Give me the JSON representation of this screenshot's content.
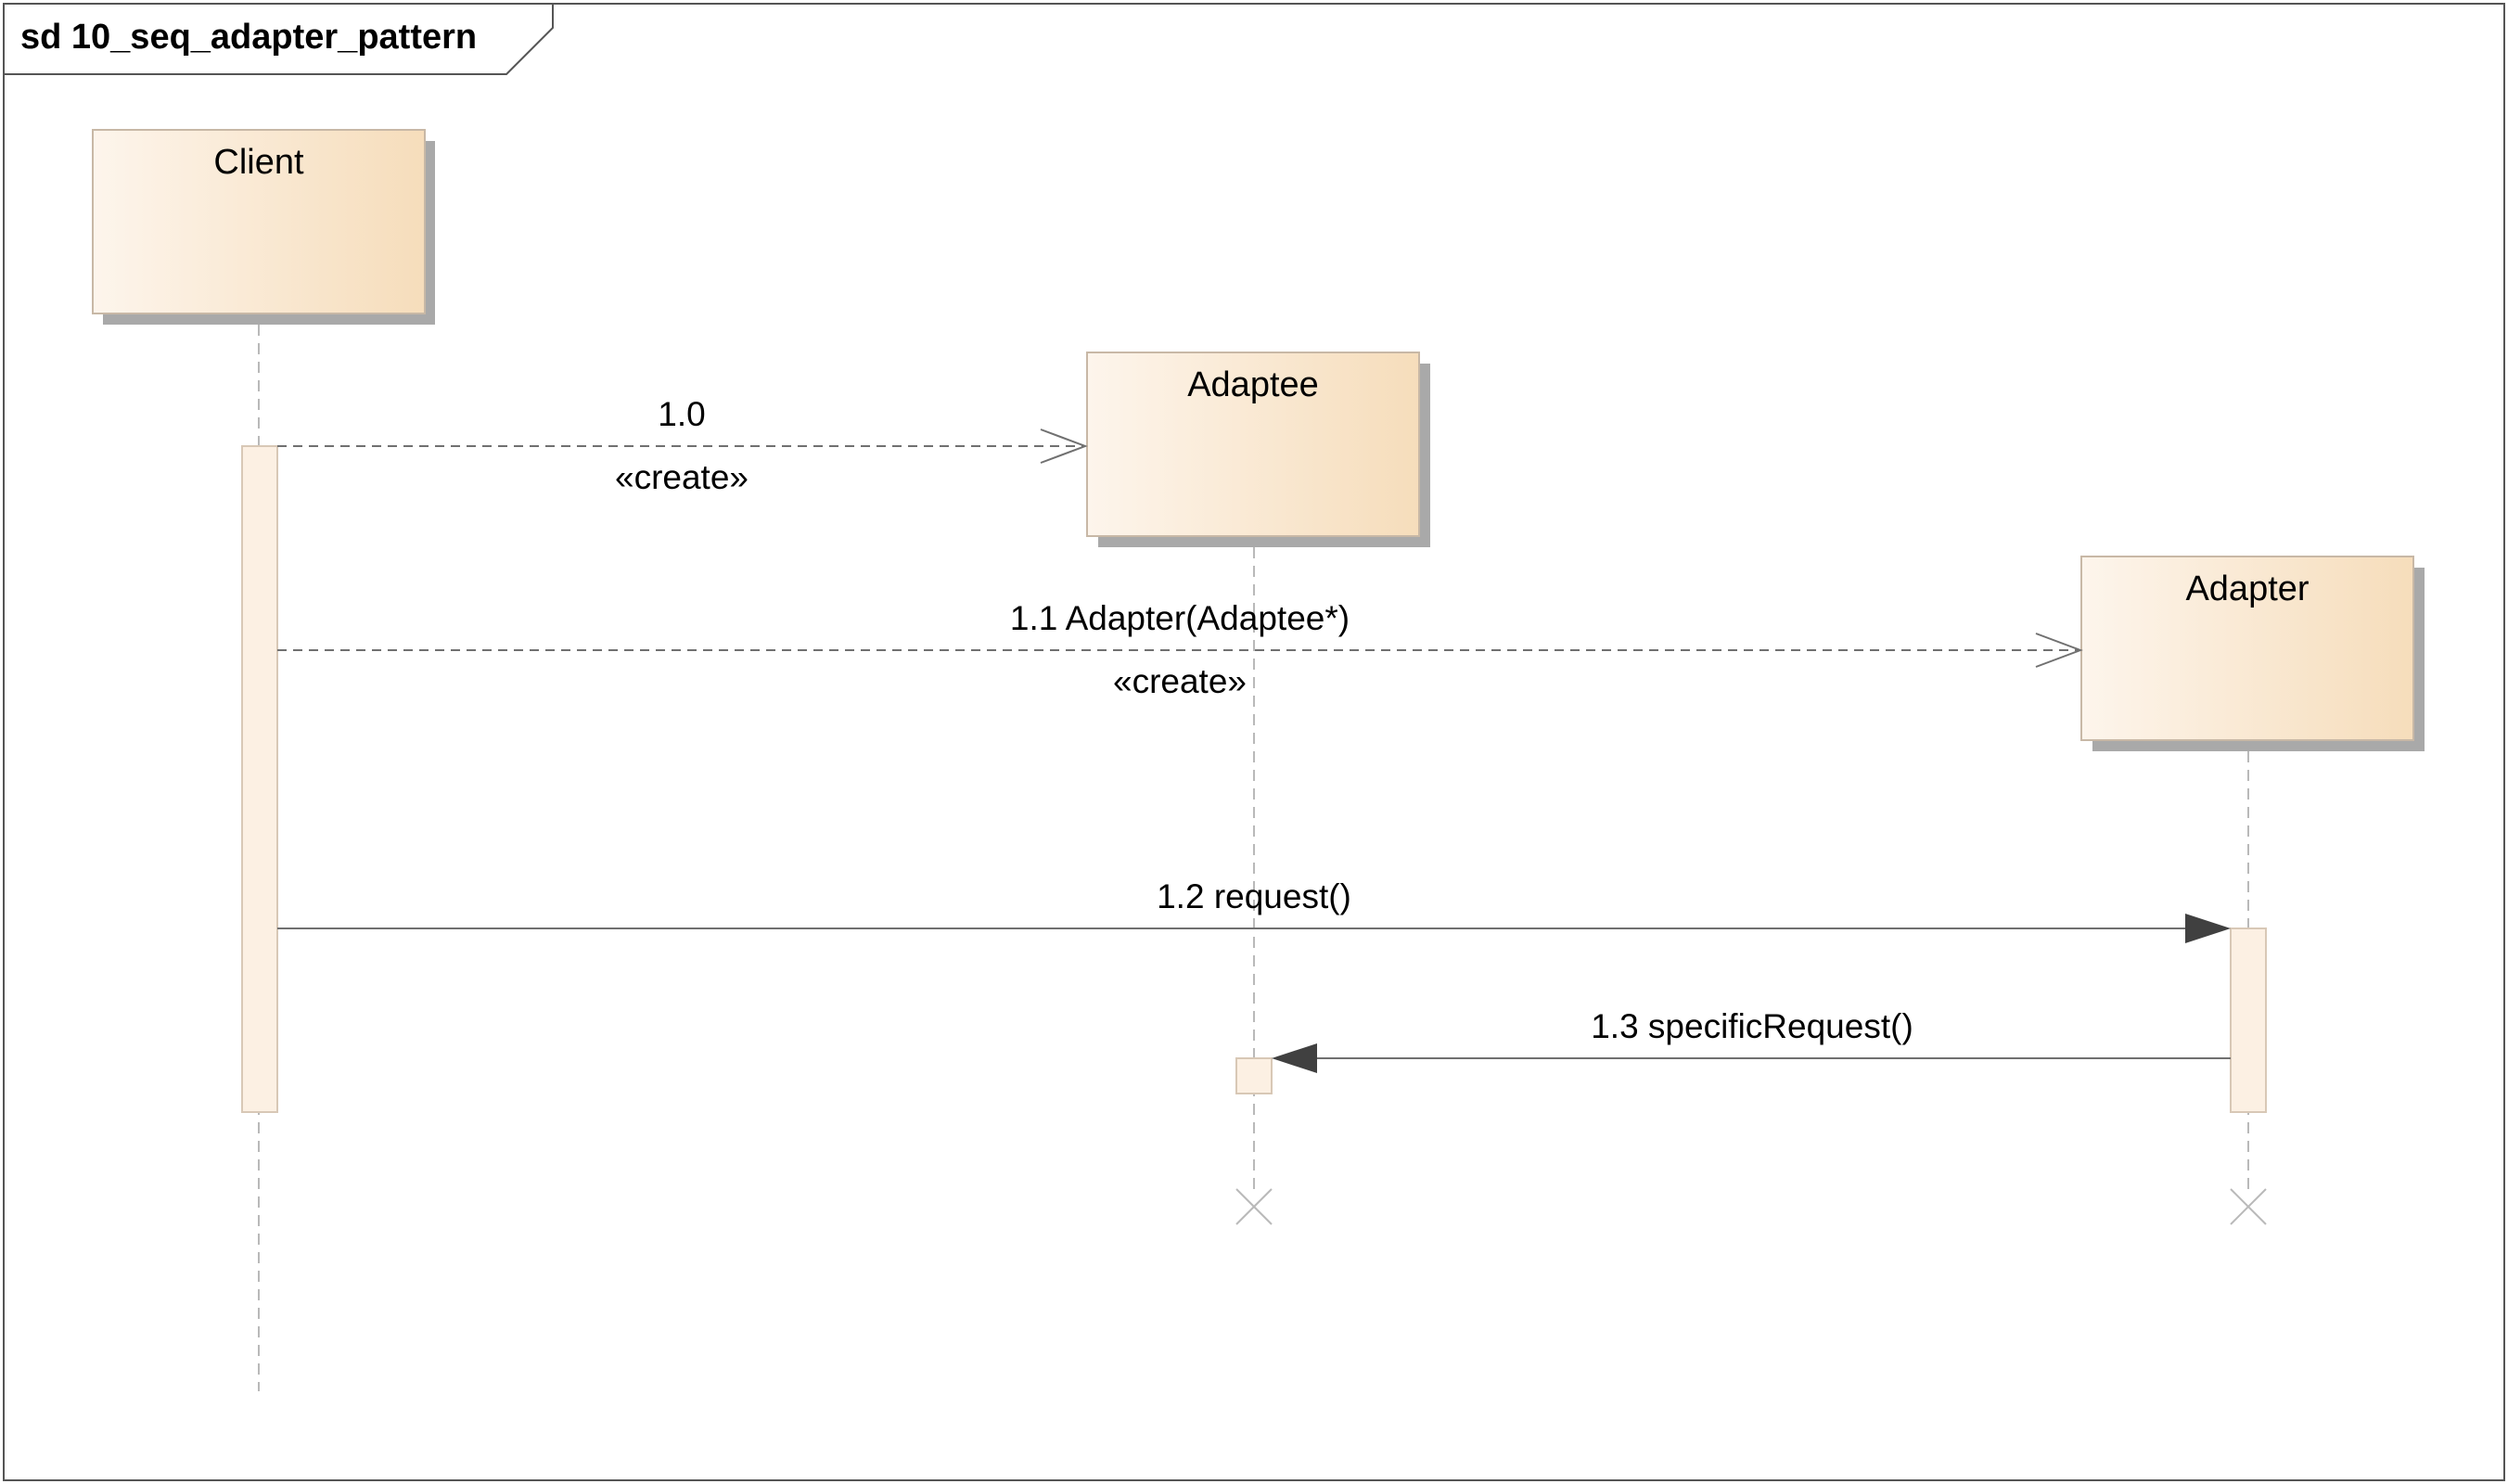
{
  "frame": {
    "title": "sd 10_seq_adapter_pattern"
  },
  "lifelines": [
    {
      "id": "client",
      "name": "Client"
    },
    {
      "id": "adaptee",
      "name": "Adaptee"
    },
    {
      "id": "adapter",
      "name": "Adapter"
    }
  ],
  "messages": [
    {
      "id": "m10",
      "label": "1.0",
      "stereotype": "«create»",
      "from": "client",
      "to": "adaptee",
      "kind": "create"
    },
    {
      "id": "m11",
      "label": "1.1 Adapter(Adaptee*)",
      "stereotype": "«create»",
      "from": "client",
      "to": "adapter",
      "kind": "create"
    },
    {
      "id": "m12",
      "label": "1.2 request()",
      "from": "client",
      "to": "adapter",
      "kind": "sync"
    },
    {
      "id": "m13",
      "label": "1.3 specificRequest()",
      "from": "adapter",
      "to": "adaptee",
      "kind": "sync"
    }
  ],
  "colors": {
    "box_light": "#fdf5ec",
    "box_dark": "#f6ddbb",
    "box_border": "#c8b8a6",
    "shadow": "#a9a9a9",
    "activation_fill": "#fcf0e3",
    "lifeline": "#b9b9b9",
    "message_line": "#707070",
    "arrow_fill": "#404040",
    "frame_border": "#555555"
  }
}
